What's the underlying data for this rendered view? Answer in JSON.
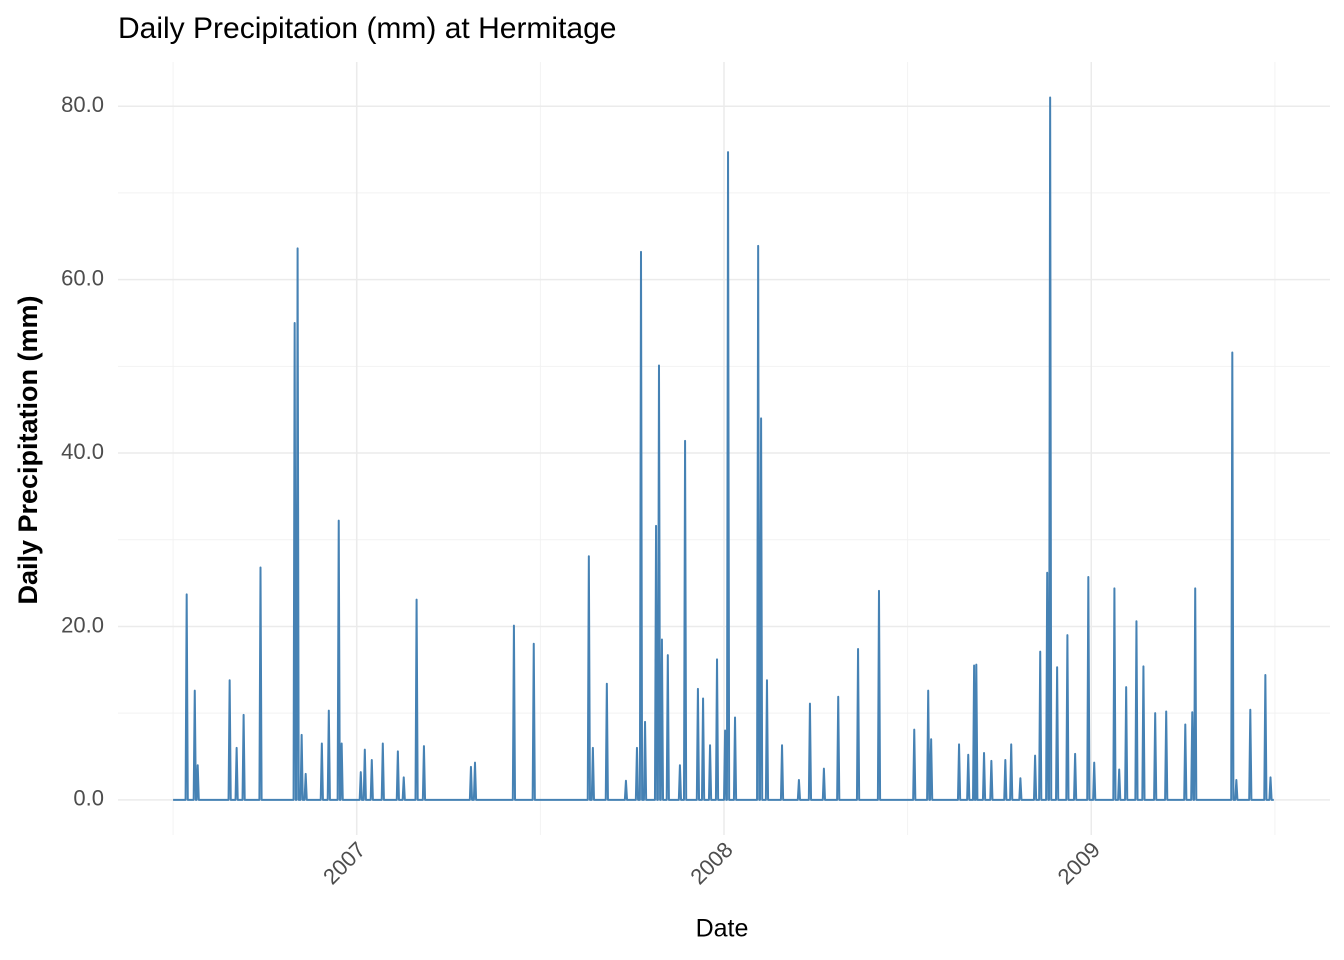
{
  "chart_data": {
    "type": "line",
    "title": "Daily Precipitation (mm) at Hermitage",
    "x_label": "Date",
    "y_label": "Daily Precipitation (mm)",
    "color": "#4682b4",
    "grid": true,
    "xlim": [
      2006.35,
      2009.65
    ],
    "xticks": [
      2007,
      2008,
      2009
    ],
    "minor_xticks": [
      2006.5,
      2007.5,
      2008.5,
      2009.5
    ],
    "ylim": [
      -4.05,
      85.1
    ],
    "yticks": [
      {
        "value": 0,
        "label": "0.0"
      },
      {
        "value": 20,
        "label": "20.0"
      },
      {
        "value": 40,
        "label": "40.0"
      },
      {
        "value": 60,
        "label": "60.0"
      },
      {
        "value": 80,
        "label": "80.0"
      }
    ],
    "minor_yticks": [
      10,
      30,
      50,
      70
    ],
    "x": [
      2006.5,
      2006.534,
      2006.537,
      2006.54,
      2006.556,
      2006.559,
      2006.562,
      2006.564,
      2006.567,
      2006.57,
      2006.651,
      2006.654,
      2006.657,
      2006.67,
      2006.673,
      2006.676,
      2006.689,
      2006.692,
      2006.695,
      2006.735,
      2006.738,
      2006.741,
      2006.828,
      2006.831,
      2006.834,
      2006.836,
      2006.839,
      2006.842,
      2006.847,
      2006.85,
      2006.853,
      2006.858,
      2006.861,
      2006.864,
      2006.902,
      2006.905,
      2006.908,
      2006.921,
      2006.924,
      2006.927,
      2006.948,
      2006.951,
      2006.954,
      2006.956,
      2006.959,
      2006.962,
      2007.008,
      2007.011,
      2007.014,
      2007.019,
      2007.022,
      2007.025,
      2007.038,
      2007.041,
      2007.044,
      2007.068,
      2007.071,
      2007.074,
      2007.109,
      2007.112,
      2007.115,
      2007.125,
      2007.128,
      2007.131,
      2007.16,
      2007.163,
      2007.166,
      2007.18,
      2007.183,
      2007.186,
      2007.308,
      2007.311,
      2007.314,
      2007.319,
      2007.322,
      2007.325,
      2007.425,
      2007.428,
      2007.431,
      2007.479,
      2007.482,
      2007.485,
      2007.629,
      2007.632,
      2007.635,
      2007.64,
      2007.643,
      2007.646,
      2007.678,
      2007.681,
      2007.684,
      2007.73,
      2007.733,
      2007.736,
      2007.76,
      2007.763,
      2007.766,
      2007.771,
      2007.774,
      2007.777,
      2007.782,
      2007.785,
      2007.788,
      2007.812,
      2007.815,
      2007.818,
      2007.82,
      2007.823,
      2007.826,
      2007.828,
      2007.831,
      2007.834,
      2007.844,
      2007.847,
      2007.85,
      2007.877,
      2007.88,
      2007.883,
      2007.891,
      2007.894,
      2007.897,
      2007.926,
      2007.929,
      2007.932,
      2007.94,
      2007.943,
      2007.946,
      2007.959,
      2007.962,
      2007.965,
      2007.978,
      2007.981,
      2007.984,
      2008.0,
      2008.003,
      2008.006,
      2008.008,
      2008.011,
      2008.014,
      2008.027,
      2008.03,
      2008.033,
      2008.09,
      2008.093,
      2008.096,
      2008.098,
      2008.101,
      2008.104,
      2008.114,
      2008.117,
      2008.12,
      2008.155,
      2008.158,
      2008.161,
      2008.201,
      2008.204,
      2008.207,
      2008.231,
      2008.234,
      2008.237,
      2008.269,
      2008.272,
      2008.275,
      2008.308,
      2008.311,
      2008.314,
      2008.362,
      2008.365,
      2008.368,
      2008.419,
      2008.422,
      2008.425,
      2008.515,
      2008.518,
      2008.521,
      2008.553,
      2008.556,
      2008.559,
      2008.561,
      2008.564,
      2008.567,
      2008.637,
      2008.64,
      2008.643,
      2008.662,
      2008.665,
      2008.668,
      2008.678,
      2008.681,
      2008.683,
      2008.685,
      2008.687,
      2008.69,
      2008.705,
      2008.708,
      2008.711,
      2008.725,
      2008.728,
      2008.731,
      2008.763,
      2008.766,
      2008.769,
      2008.779,
      2008.782,
      2008.785,
      2008.804,
      2008.807,
      2008.81,
      2008.844,
      2008.847,
      2008.85,
      2008.858,
      2008.861,
      2008.864,
      2008.877,
      2008.88,
      2008.883,
      2008.885,
      2008.888,
      2008.891,
      2008.904,
      2008.907,
      2008.91,
      2008.932,
      2008.935,
      2008.938,
      2008.953,
      2008.956,
      2008.959,
      2008.989,
      2008.992,
      2008.995,
      2009.005,
      2009.008,
      2009.011,
      2009.06,
      2009.063,
      2009.066,
      2009.073,
      2009.076,
      2009.079,
      2009.092,
      2009.095,
      2009.098,
      2009.12,
      2009.123,
      2009.126,
      2009.139,
      2009.142,
      2009.145,
      2009.171,
      2009.174,
      2009.177,
      2009.201,
      2009.204,
      2009.207,
      2009.253,
      2009.256,
      2009.259,
      2009.272,
      2009.275,
      2009.278,
      2009.28,
      2009.283,
      2009.286,
      2009.381,
      2009.384,
      2009.387,
      2009.392,
      2009.395,
      2009.398,
      2009.43,
      2009.433,
      2009.436,
      2009.471,
      2009.474,
      2009.477,
      2009.485,
      2009.488,
      2009.491,
      2009.497
    ],
    "values": [
      0,
      0,
      23.7,
      0,
      0,
      12.6,
      0,
      0,
      4,
      0,
      0,
      13.8,
      0,
      0,
      6,
      0,
      0,
      9.8,
      0,
      0,
      26.8,
      0,
      0,
      55,
      0,
      0,
      63.6,
      0,
      0,
      7.5,
      0,
      0,
      3,
      0,
      0,
      6.5,
      0,
      0,
      10.3,
      0,
      0,
      32.2,
      0,
      0,
      6.5,
      0,
      0,
      3.2,
      0,
      0,
      5.8,
      0,
      0,
      4.6,
      0,
      0,
      6.5,
      0,
      0,
      5.6,
      0,
      0,
      2.6,
      0,
      0,
      23.1,
      0,
      0,
      6.2,
      0,
      0,
      3.8,
      0,
      0,
      4.3,
      0,
      0,
      20.1,
      0,
      0,
      18,
      0,
      0,
      28.1,
      0,
      0,
      6,
      0,
      0,
      13.4,
      0,
      0,
      2.2,
      0,
      0,
      6,
      0,
      0,
      63.2,
      0,
      0,
      9,
      0,
      0,
      31.6,
      0,
      0,
      50.1,
      0,
      0,
      18.5,
      0,
      0,
      16.7,
      0,
      0,
      4,
      0,
      0,
      41.4,
      0,
      0,
      12.8,
      0,
      0,
      11.7,
      0,
      0,
      6.3,
      0,
      0,
      16.2,
      0,
      0,
      8,
      0,
      0,
      74.7,
      0,
      0,
      9.5,
      0,
      0,
      63.9,
      0,
      0,
      44,
      0,
      0,
      13.8,
      0,
      0,
      6.3,
      0,
      0,
      2.3,
      0,
      0,
      11.1,
      0,
      0,
      3.6,
      0,
      0,
      11.9,
      0,
      0,
      17.4,
      0,
      0,
      24.1,
      0,
      0,
      8.1,
      0,
      0,
      12.6,
      0,
      0,
      7,
      0,
      0,
      6.4,
      0,
      0,
      5.2,
      0,
      0,
      15.5,
      0,
      0,
      15.6,
      0,
      0,
      5.4,
      0,
      0,
      4.5,
      0,
      0,
      4.6,
      0,
      0,
      6.4,
      0,
      0,
      2.5,
      0,
      0,
      5.1,
      0,
      0,
      17.1,
      0,
      0,
      26.2,
      0,
      0,
      81,
      0,
      0,
      15.3,
      0,
      0,
      19,
      0,
      0,
      5.3,
      0,
      0,
      25.7,
      0,
      0,
      4.3,
      0,
      0,
      24.4,
      0,
      0,
      3.5,
      0,
      0,
      13,
      0,
      0,
      20.6,
      0,
      0,
      15.4,
      0,
      0,
      10,
      0,
      0,
      10.2,
      0,
      0,
      8.7,
      0,
      0,
      10.1,
      0,
      0,
      24.4,
      0,
      0,
      51.6,
      0,
      0,
      2.3,
      0,
      0,
      10.4,
      0,
      0,
      14.4,
      0,
      0,
      2.6,
      0,
      0
    ]
  }
}
